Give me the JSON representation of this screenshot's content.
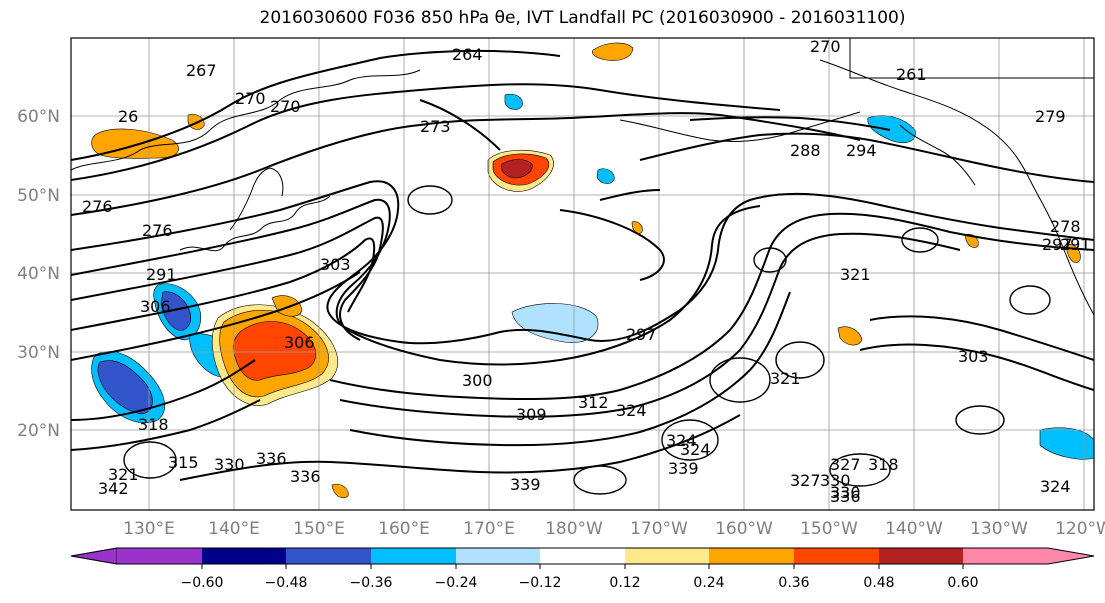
{
  "title_text": "2016030600 F036 850 hPa θe, IVT Landfall PC (2016030900 - 2016031100)",
  "latitude_labels": [
    "60°N",
    "50°N",
    "40°N",
    "30°N",
    "20°N"
  ],
  "longitude_labels": [
    "130°E",
    "140°E",
    "150°E",
    "160°E",
    "170°E",
    "180°W",
    "170°W",
    "160°W",
    "150°W",
    "140°W",
    "130°W",
    "120°W"
  ],
  "contour_labels": [
    "264",
    "267",
    "270",
    "270",
    "26",
    "273",
    "276",
    "276",
    "279",
    "288",
    "294",
    "291",
    "303",
    "306",
    "297",
    "300",
    "309",
    "303",
    "312",
    "324",
    "321",
    "318",
    "324",
    "330",
    "336",
    "339",
    "339",
    "336",
    "327",
    "330",
    "336",
    "324",
    "318",
    "315",
    "321",
    "342",
    "327",
    "330",
    "297",
    "291",
    "278",
    "321",
    "324",
    "306",
    "270",
    "261"
  ],
  "colorbar": {
    "ticks": [
      "−0.60",
      "−0.48",
      "−0.36",
      "−0.24",
      "−0.12",
      "0.12",
      "0.24",
      "0.36",
      "0.48",
      "0.60"
    ],
    "colors": [
      "#9933cc",
      "#00008b",
      "#3355cc",
      "#00bfff",
      "#b0e2ff",
      "#ffffff",
      "#ffe98a",
      "#ffa500",
      "#ff4500",
      "#b22222",
      "#ff88aa"
    ],
    "under_color": "#9933cc",
    "over_color": "#ff88aa"
  },
  "fill_colors": {
    "strong_neg": "#3355cc",
    "mid_neg": "#00bfff",
    "weak_neg": "#b0e2ff",
    "weak_pos": "#ffe98a",
    "mid_pos": "#ffa500",
    "strong_pos": "#ff4500",
    "peak_pos": "#b22222"
  }
}
